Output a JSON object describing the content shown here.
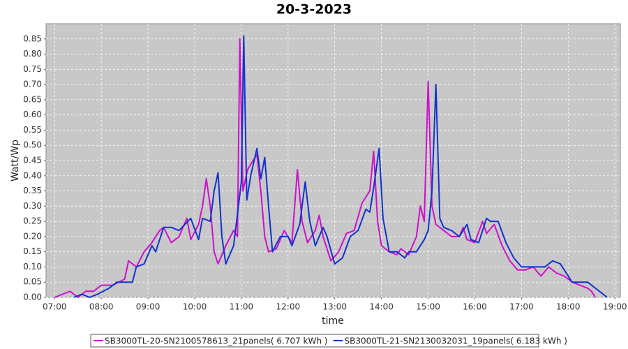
{
  "chart_data": {
    "type": "line",
    "title": "20-3-2023",
    "xlabel": "time",
    "ylabel": "Watt/Wp",
    "xlim": [
      "06:49",
      "19:07"
    ],
    "xticks": [
      "07:00",
      "08:00",
      "09:00",
      "10:00",
      "11:00",
      "12:00",
      "13:00",
      "14:00",
      "15:00",
      "16:00",
      "17:00",
      "18:00",
      "19:00"
    ],
    "ylim": [
      0,
      0.9
    ],
    "yticks": [
      {
        "value": 0,
        "label": "0.00"
      },
      {
        "value": 0.05,
        "label": "0.05"
      },
      {
        "value": 0.1,
        "label": "0.10"
      },
      {
        "value": 0.15,
        "label": "0.15"
      },
      {
        "value": 0.2,
        "label": "0.20"
      },
      {
        "value": 0.25,
        "label": "0.25"
      },
      {
        "value": 0.3,
        "label": "0.30"
      },
      {
        "value": 0.35,
        "label": "0.35"
      },
      {
        "value": 0.4,
        "label": "0.40"
      },
      {
        "value": 0.45,
        "label": "0.45"
      },
      {
        "value": 0.5,
        "label": "0.50"
      },
      {
        "value": 0.55,
        "label": "0.55"
      },
      {
        "value": 0.6,
        "label": "0.60"
      },
      {
        "value": 0.65,
        "label": "0.65"
      },
      {
        "value": 0.7,
        "label": "0.70"
      },
      {
        "value": 0.75,
        "label": "0.75"
      },
      {
        "value": 0.8,
        "label": "0.80"
      },
      {
        "value": 0.85,
        "label": "0.85"
      }
    ],
    "grid": true,
    "legend": "bottom",
    "series": [
      {
        "name": "SB3000TL-20-SN2100578613_21panels( 6.707 kWh )",
        "color": "#cc11cc",
        "x": [
          "07:00",
          "07:20",
          "07:30",
          "07:40",
          "07:50",
          "08:00",
          "08:15",
          "08:30",
          "08:35",
          "08:45",
          "08:55",
          "09:05",
          "09:15",
          "09:20",
          "09:30",
          "09:40",
          "09:50",
          "09:55",
          "10:05",
          "10:10",
          "10:15",
          "10:20",
          "10:25",
          "10:30",
          "10:40",
          "10:50",
          "10:55",
          "10:58",
          "11:02",
          "11:08",
          "11:15",
          "11:20",
          "11:25",
          "11:30",
          "11:35",
          "11:45",
          "11:55",
          "12:05",
          "12:12",
          "12:18",
          "12:25",
          "12:35",
          "12:40",
          "12:45",
          "12:55",
          "13:05",
          "13:15",
          "13:25",
          "13:35",
          "13:45",
          "13:50",
          "13:55",
          "14:00",
          "14:10",
          "14:20",
          "14:25",
          "14:35",
          "14:45",
          "14:50",
          "14:55",
          "15:00",
          "15:05",
          "15:10",
          "15:20",
          "15:30",
          "15:40",
          "15:45",
          "15:50",
          "16:00",
          "16:10",
          "16:15",
          "16:25",
          "16:35",
          "16:45",
          "16:55",
          "17:05",
          "17:15",
          "17:25",
          "17:35",
          "17:45",
          "17:55",
          "18:05",
          "18:15",
          "18:25",
          "18:30",
          "18:35"
        ],
        "values": [
          0,
          0.02,
          0,
          0.02,
          0.02,
          0.04,
          0.04,
          0.06,
          0.12,
          0.1,
          0.15,
          0.18,
          0.22,
          0.23,
          0.18,
          0.2,
          0.26,
          0.19,
          0.24,
          0.3,
          0.39,
          0.3,
          0.15,
          0.11,
          0.17,
          0.22,
          0.2,
          0.85,
          0.35,
          0.42,
          0.45,
          0.47,
          0.35,
          0.2,
          0.15,
          0.16,
          0.22,
          0.18,
          0.42,
          0.25,
          0.18,
          0.22,
          0.27,
          0.2,
          0.12,
          0.15,
          0.21,
          0.22,
          0.31,
          0.35,
          0.48,
          0.25,
          0.17,
          0.15,
          0.14,
          0.16,
          0.14,
          0.2,
          0.3,
          0.25,
          0.71,
          0.3,
          0.24,
          0.22,
          0.2,
          0.2,
          0.23,
          0.19,
          0.18,
          0.25,
          0.21,
          0.24,
          0.17,
          0.12,
          0.09,
          0.09,
          0.1,
          0.07,
          0.1,
          0.08,
          0.07,
          0.05,
          0.04,
          0.03,
          0.02,
          0
        ]
      },
      {
        "name": "SB3000TL-21-SN2130032031_19panels( 6.183 kWh )",
        "color": "#1133cc",
        "x": [
          "07:25",
          "07:35",
          "07:45",
          "07:55",
          "08:10",
          "08:20",
          "08:40",
          "08:45",
          "08:55",
          "09:05",
          "09:10",
          "09:20",
          "09:30",
          "09:40",
          "09:55",
          "10:05",
          "10:10",
          "10:20",
          "10:25",
          "10:30",
          "10:35",
          "10:40",
          "10:50",
          "11:00",
          "11:03",
          "11:07",
          "11:12",
          "11:20",
          "11:25",
          "11:30",
          "11:35",
          "11:40",
          "11:50",
          "12:00",
          "12:05",
          "12:15",
          "12:22",
          "12:28",
          "12:35",
          "12:45",
          "12:50",
          "13:00",
          "13:10",
          "13:20",
          "13:30",
          "13:40",
          "13:45",
          "13:50",
          "13:57",
          "14:02",
          "14:10",
          "14:20",
          "14:30",
          "14:35",
          "14:45",
          "14:55",
          "15:00",
          "15:05",
          "15:10",
          "15:15",
          "15:20",
          "15:30",
          "15:40",
          "15:50",
          "15:55",
          "16:05",
          "16:15",
          "16:20",
          "16:30",
          "16:40",
          "16:50",
          "17:00",
          "17:10",
          "17:20",
          "17:30",
          "17:40",
          "17:50",
          "17:55",
          "18:05",
          "18:15",
          "18:25",
          "18:35",
          "18:45",
          "18:50"
        ],
        "values": [
          0,
          0.01,
          0,
          0.01,
          0.03,
          0.05,
          0.05,
          0.1,
          0.11,
          0.17,
          0.15,
          0.23,
          0.23,
          0.22,
          0.26,
          0.19,
          0.26,
          0.25,
          0.35,
          0.41,
          0.2,
          0.11,
          0.17,
          0.38,
          0.86,
          0.32,
          0.4,
          0.49,
          0.39,
          0.46,
          0.3,
          0.15,
          0.2,
          0.2,
          0.17,
          0.24,
          0.38,
          0.25,
          0.17,
          0.23,
          0.2,
          0.11,
          0.13,
          0.2,
          0.22,
          0.29,
          0.28,
          0.36,
          0.49,
          0.26,
          0.15,
          0.15,
          0.13,
          0.15,
          0.15,
          0.19,
          0.22,
          0.35,
          0.7,
          0.26,
          0.23,
          0.22,
          0.2,
          0.24,
          0.19,
          0.18,
          0.26,
          0.25,
          0.25,
          0.18,
          0.13,
          0.1,
          0.1,
          0.1,
          0.1,
          0.12,
          0.11,
          0.09,
          0.05,
          0.05,
          0.05,
          0.03,
          0.01,
          0
        ]
      }
    ]
  }
}
